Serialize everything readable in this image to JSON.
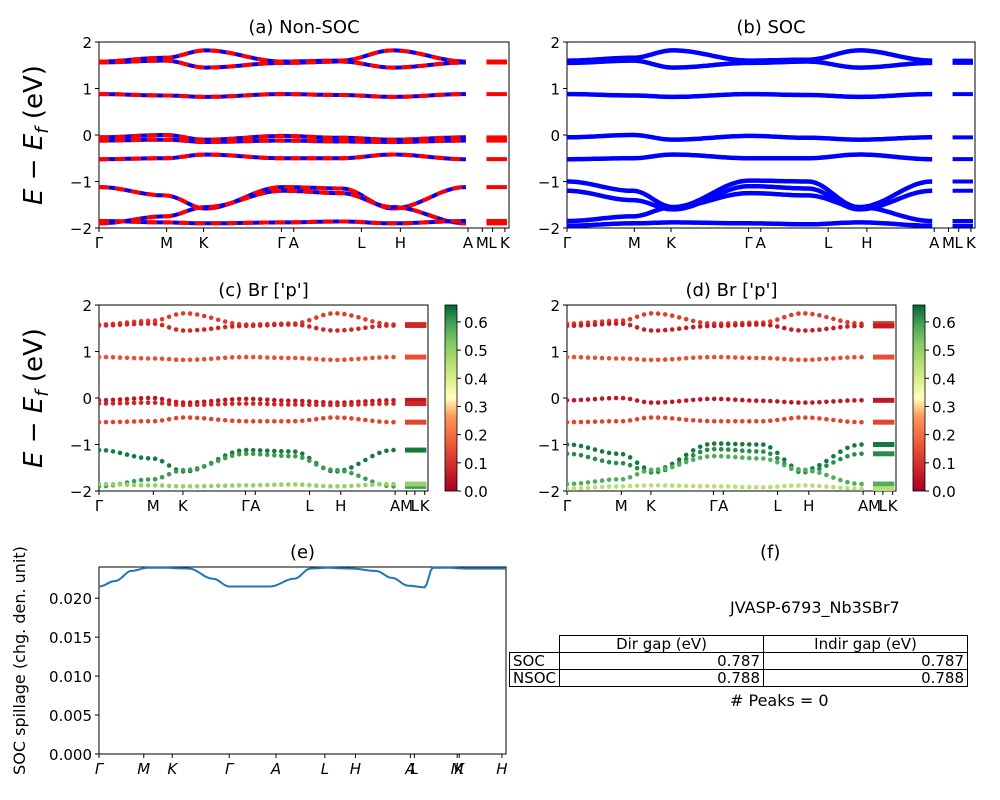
{
  "chart_data": [
    {
      "id": "a",
      "type": "line",
      "title": "(a) Non-SOC",
      "ylabel": "E − E_f (eV)",
      "ylim": [
        -2,
        2
      ],
      "yticks": [
        "2",
        "1",
        "0",
        "−1",
        "−2"
      ],
      "xticks": [
        "Γ",
        "M",
        "K",
        "Γ",
        "A",
        "L",
        "H",
        "A",
        "M",
        "L",
        "K"
      ],
      "series_colors": [
        "#ff0000",
        "#0000ff"
      ],
      "bands": [
        {
          "name": "",
          "x": [
            0,
            0.18,
            0.29,
            0.5,
            0.66,
            0.8,
            1.0
          ],
          "y": [
            1.58,
            1.66,
            1.82,
            1.58,
            1.6,
            1.82,
            1.58
          ]
        },
        {
          "name": "",
          "x": [
            0,
            0.18,
            0.29,
            0.5,
            0.66,
            0.8,
            1.0
          ],
          "y": [
            1.56,
            1.6,
            1.45,
            1.55,
            1.58,
            1.45,
            1.56
          ]
        },
        {
          "name": "",
          "x": [
            0,
            0.18,
            0.29,
            0.5,
            0.66,
            0.8,
            1.0
          ],
          "y": [
            0.88,
            0.85,
            0.82,
            0.88,
            0.86,
            0.82,
            0.88
          ]
        },
        {
          "name": "",
          "x": [
            0,
            0.18,
            0.29,
            0.5,
            0.66,
            0.8,
            1.0
          ],
          "y": [
            -0.05,
            0.0,
            -0.1,
            -0.02,
            -0.06,
            -0.1,
            -0.05
          ]
        },
        {
          "name": "",
          "x": [
            0,
            0.18,
            0.29,
            0.5,
            0.66,
            0.8,
            1.0
          ],
          "y": [
            -0.12,
            -0.1,
            -0.15,
            -0.12,
            -0.14,
            -0.15,
            -0.12
          ]
        },
        {
          "name": "",
          "x": [
            0,
            0.18,
            0.29,
            0.5,
            0.66,
            0.8,
            1.0
          ],
          "y": [
            -0.52,
            -0.5,
            -0.42,
            -0.5,
            -0.5,
            -0.42,
            -0.52
          ]
        },
        {
          "name": "",
          "x": [
            0,
            0.18,
            0.29,
            0.5,
            0.66,
            0.8,
            1.0
          ],
          "y": [
            -1.12,
            -1.3,
            -1.58,
            -1.12,
            -1.15,
            -1.58,
            -1.12
          ]
        },
        {
          "name": "",
          "x": [
            0,
            0.18,
            0.29,
            0.5,
            0.66,
            0.8,
            1.0
          ],
          "y": [
            -1.9,
            -1.75,
            -1.55,
            -1.2,
            -1.25,
            -1.55,
            -1.9
          ]
        },
        {
          "name": "",
          "x": [
            0,
            0.18,
            0.29,
            0.5,
            0.66,
            0.8,
            1.0
          ],
          "y": [
            -1.85,
            -1.88,
            -1.9,
            -1.88,
            -1.86,
            -1.9,
            -1.85
          ]
        }
      ]
    },
    {
      "id": "b",
      "type": "line",
      "title": "(b) SOC",
      "ylim": [
        -2,
        2
      ],
      "yticks": [
        "2",
        "1",
        "0",
        "−1",
        "−2"
      ],
      "xticks": [
        "Γ",
        "M",
        "K",
        "Γ",
        "A",
        "L",
        "H",
        "A",
        "M",
        "L",
        "K"
      ],
      "series_colors": [
        "#0000ff"
      ],
      "bands": [
        {
          "name": "",
          "x": [
            0,
            0.18,
            0.29,
            0.5,
            0.66,
            0.8,
            1.0
          ],
          "y": [
            1.6,
            1.66,
            1.82,
            1.6,
            1.62,
            1.82,
            1.6
          ]
        },
        {
          "name": "",
          "x": [
            0,
            0.18,
            0.29,
            0.5,
            0.66,
            0.8,
            1.0
          ],
          "y": [
            1.55,
            1.6,
            1.45,
            1.55,
            1.58,
            1.45,
            1.55
          ]
        },
        {
          "name": "",
          "x": [
            0,
            0.18,
            0.29,
            0.5,
            0.66,
            0.8,
            1.0
          ],
          "y": [
            0.88,
            0.85,
            0.82,
            0.88,
            0.86,
            0.82,
            0.88
          ]
        },
        {
          "name": "",
          "x": [
            0,
            0.18,
            0.29,
            0.5,
            0.66,
            0.8,
            1.0
          ],
          "y": [
            -0.05,
            0.0,
            -0.1,
            -0.02,
            -0.06,
            -0.1,
            -0.05
          ]
        },
        {
          "name": "",
          "x": [
            0,
            0.18,
            0.29,
            0.5,
            0.66,
            0.8,
            1.0
          ],
          "y": [
            -0.52,
            -0.5,
            -0.42,
            -0.5,
            -0.5,
            -0.42,
            -0.52
          ]
        },
        {
          "name": "",
          "x": [
            0,
            0.18,
            0.29,
            0.5,
            0.66,
            0.8,
            1.0
          ],
          "y": [
            -1.0,
            -1.2,
            -1.55,
            -0.98,
            -1.0,
            -1.55,
            -1.0
          ]
        },
        {
          "name": "",
          "x": [
            0,
            0.18,
            0.29,
            0.5,
            0.66,
            0.8,
            1.0
          ],
          "y": [
            -1.2,
            -1.4,
            -1.6,
            -1.1,
            -1.15,
            -1.6,
            -1.2
          ]
        },
        {
          "name": "",
          "x": [
            0,
            0.18,
            0.29,
            0.5,
            0.66,
            0.8,
            1.0
          ],
          "y": [
            -1.85,
            -1.75,
            -1.55,
            -1.25,
            -1.3,
            -1.55,
            -1.85
          ]
        },
        {
          "name": "",
          "x": [
            0,
            0.18,
            0.29,
            0.5,
            0.66,
            0.8,
            1.0
          ],
          "y": [
            -1.95,
            -1.9,
            -1.88,
            -1.9,
            -1.92,
            -1.88,
            -1.95
          ]
        }
      ]
    },
    {
      "id": "c",
      "type": "scatter",
      "title": "(c)  Br ['p']",
      "ylabel": "E − E_f (eV)",
      "ylim": [
        -2,
        2
      ],
      "yticks": [
        "2",
        "1",
        "0",
        "−1",
        "−2"
      ],
      "xticks": [
        "Γ",
        "M",
        "K",
        "Γ",
        "A",
        "L",
        "H",
        "A",
        "M",
        "L",
        "K"
      ],
      "colorbar": {
        "ticks": [
          "0.6",
          "0.5",
          "0.4",
          "0.3",
          "0.2",
          "0.1",
          "0.0"
        ],
        "range": [
          0,
          0.66
        ],
        "colormap": "RdYlGn"
      },
      "bands": [
        {
          "x": [
            0,
            0.18,
            0.29,
            0.5,
            0.66,
            0.8,
            1.0
          ],
          "y": [
            1.58,
            1.66,
            1.82,
            1.58,
            1.6,
            1.82,
            1.58
          ],
          "weight": 0.12
        },
        {
          "x": [
            0,
            0.18,
            0.29,
            0.5,
            0.66,
            0.8,
            1.0
          ],
          "y": [
            1.56,
            1.6,
            1.45,
            1.55,
            1.58,
            1.45,
            1.56
          ],
          "weight": 0.08
        },
        {
          "x": [
            0,
            0.18,
            0.29,
            0.5,
            0.66,
            0.8,
            1.0
          ],
          "y": [
            0.88,
            0.85,
            0.82,
            0.88,
            0.86,
            0.82,
            0.88
          ],
          "weight": 0.15
        },
        {
          "x": [
            0,
            0.18,
            0.29,
            0.5,
            0.66,
            0.8,
            1.0
          ],
          "y": [
            -0.05,
            0.0,
            -0.1,
            -0.02,
            -0.06,
            -0.1,
            -0.05
          ],
          "weight": 0.05
        },
        {
          "x": [
            0,
            0.18,
            0.29,
            0.5,
            0.66,
            0.8,
            1.0
          ],
          "y": [
            -0.12,
            -0.1,
            -0.15,
            -0.12,
            -0.14,
            -0.15,
            -0.12
          ],
          "weight": 0.08
        },
        {
          "x": [
            0,
            0.18,
            0.29,
            0.5,
            0.66,
            0.8,
            1.0
          ],
          "y": [
            -0.52,
            -0.5,
            -0.42,
            -0.5,
            -0.5,
            -0.42,
            -0.52
          ],
          "weight": 0.13
        },
        {
          "x": [
            0,
            0.18,
            0.29,
            0.5,
            0.66,
            0.8,
            1.0
          ],
          "y": [
            -1.12,
            -1.3,
            -1.58,
            -1.12,
            -1.15,
            -1.58,
            -1.12
          ],
          "weight": 0.64
        },
        {
          "x": [
            0,
            0.18,
            0.29,
            0.5,
            0.66,
            0.8,
            1.0
          ],
          "y": [
            -1.9,
            -1.75,
            -1.55,
            -1.2,
            -1.25,
            -1.55,
            -1.9
          ],
          "weight": 0.6
        },
        {
          "x": [
            0,
            0.18,
            0.29,
            0.5,
            0.66,
            0.8,
            1.0
          ],
          "y": [
            -1.85,
            -1.88,
            -1.9,
            -1.88,
            -1.86,
            -1.9,
            -1.85
          ],
          "weight": 0.5
        }
      ]
    },
    {
      "id": "d",
      "type": "scatter",
      "title": "(d) Br ['p']",
      "ylim": [
        -2,
        2
      ],
      "yticks": [
        "2",
        "1",
        "0",
        "−1",
        "−2"
      ],
      "xticks": [
        "Γ",
        "M",
        "K",
        "Γ",
        "A",
        "L",
        "H",
        "A",
        "M",
        "L",
        "K"
      ],
      "colorbar": {
        "ticks": [
          "0.6",
          "0.5",
          "0.4",
          "0.3",
          "0.2",
          "0.1",
          "0.0"
        ],
        "range": [
          0,
          0.66
        ],
        "colormap": "RdYlGn"
      },
      "bands": [
        {
          "x": [
            0,
            0.18,
            0.29,
            0.5,
            0.66,
            0.8,
            1.0
          ],
          "y": [
            1.6,
            1.66,
            1.82,
            1.6,
            1.62,
            1.82,
            1.6
          ],
          "weight": 0.12
        },
        {
          "x": [
            0,
            0.18,
            0.29,
            0.5,
            0.66,
            0.8,
            1.0
          ],
          "y": [
            1.55,
            1.6,
            1.45,
            1.55,
            1.58,
            1.45,
            1.55
          ],
          "weight": 0.06
        },
        {
          "x": [
            0,
            0.18,
            0.29,
            0.5,
            0.66,
            0.8,
            1.0
          ],
          "y": [
            0.88,
            0.85,
            0.82,
            0.88,
            0.86,
            0.82,
            0.88
          ],
          "weight": 0.15
        },
        {
          "x": [
            0,
            0.18,
            0.29,
            0.5,
            0.66,
            0.8,
            1.0
          ],
          "y": [
            -0.05,
            0.0,
            -0.1,
            -0.02,
            -0.06,
            -0.1,
            -0.05
          ],
          "weight": 0.05
        },
        {
          "x": [
            0,
            0.18,
            0.29,
            0.5,
            0.66,
            0.8,
            1.0
          ],
          "y": [
            -0.52,
            -0.5,
            -0.42,
            -0.5,
            -0.5,
            -0.42,
            -0.52
          ],
          "weight": 0.13
        },
        {
          "x": [
            0,
            0.18,
            0.29,
            0.5,
            0.66,
            0.8,
            1.0
          ],
          "y": [
            -1.0,
            -1.2,
            -1.55,
            -0.98,
            -1.0,
            -1.55,
            -1.0
          ],
          "weight": 0.64
        },
        {
          "x": [
            0,
            0.18,
            0.29,
            0.5,
            0.66,
            0.8,
            1.0
          ],
          "y": [
            -1.2,
            -1.4,
            -1.6,
            -1.1,
            -1.15,
            -1.6,
            -1.2
          ],
          "weight": 0.62
        },
        {
          "x": [
            0,
            0.18,
            0.29,
            0.5,
            0.66,
            0.8,
            1.0
          ],
          "y": [
            -1.85,
            -1.75,
            -1.55,
            -1.25,
            -1.3,
            -1.55,
            -1.85
          ],
          "weight": 0.58
        },
        {
          "x": [
            0,
            0.18,
            0.29,
            0.5,
            0.66,
            0.8,
            1.0
          ],
          "y": [
            -1.95,
            -1.9,
            -1.88,
            -1.9,
            -1.92,
            -1.88,
            -1.95
          ],
          "weight": 0.45
        }
      ]
    },
    {
      "id": "e",
      "type": "line",
      "title": "(e)",
      "ylabel": "SOC spillage (chg. den. unit)",
      "ylim": [
        0,
        0.024
      ],
      "yticks": [
        "0.000",
        "0.005",
        "0.010",
        "0.015",
        "0.020"
      ],
      "xticks": [
        "Γ",
        "M",
        "K",
        "Γ",
        "A",
        "L",
        "H",
        "A",
        "L",
        "M",
        "K",
        "H"
      ],
      "series": [
        {
          "name": "",
          "color": "#1f77b4",
          "x": [
            0,
            0.04,
            0.08,
            0.12,
            0.16,
            0.22,
            0.28,
            0.32,
            0.36,
            0.42,
            0.48,
            0.52,
            0.56,
            0.62,
            0.68,
            0.72,
            0.76,
            0.8,
            0.82,
            0.86,
            0.9,
            0.95,
            1.0
          ],
          "y": [
            0.0215,
            0.0222,
            0.0235,
            0.0239,
            0.0239,
            0.0238,
            0.0225,
            0.0215,
            0.0215,
            0.0215,
            0.0225,
            0.0238,
            0.0239,
            0.0238,
            0.0235,
            0.0226,
            0.0216,
            0.0214,
            0.0239,
            0.0239,
            0.0238,
            0.0238,
            0.0238
          ]
        }
      ]
    }
  ],
  "panel_f": {
    "title": "(f)",
    "system_id": "JVASP-6793_Nb3SBr7",
    "table": {
      "headers": [
        "Dir gap (eV)",
        "Indir gap (eV)"
      ],
      "rows": [
        {
          "label": "SOC",
          "dir": "0.787",
          "indir": "0.787"
        },
        {
          "label": "NSOC",
          "dir": "0.788",
          "indir": "0.788"
        }
      ]
    },
    "peaks_text": "# Peaks = 0"
  }
}
